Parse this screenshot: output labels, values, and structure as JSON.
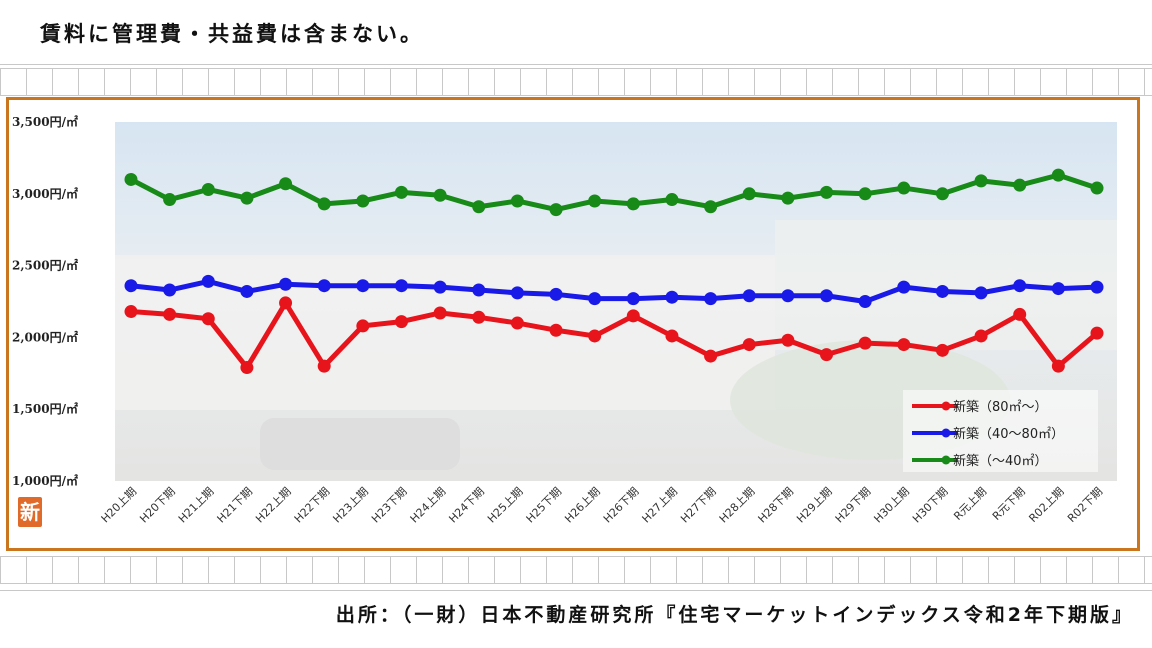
{
  "note": "賃料に管理費・共益費は含まない。",
  "source": "出所：（一財）日本不動産研究所『住宅マーケットインデックス令和2年下期版』",
  "badge": "新",
  "chart_data": {
    "type": "line",
    "title": "",
    "xlabel": "",
    "ylabel": "",
    "ylim": [
      1000,
      3500
    ],
    "yticks": [
      {
        "value": 1000,
        "label": "1,000円/㎡"
      },
      {
        "value": 1500,
        "label": "1,500円/㎡"
      },
      {
        "value": 2000,
        "label": "2,000円/㎡"
      },
      {
        "value": 2500,
        "label": "2,500円/㎡"
      },
      {
        "value": 3000,
        "label": "3,000円/㎡"
      },
      {
        "value": 3500,
        "label": "3,500円/㎡"
      }
    ],
    "categories": [
      "H20上期",
      "H20下期",
      "H21上期",
      "H21下期",
      "H22上期",
      "H22下期",
      "H23上期",
      "H23下期",
      "H24上期",
      "H24下期",
      "H25上期",
      "H25下期",
      "H26上期",
      "H26下期",
      "H27上期",
      "H27下期",
      "H28上期",
      "H28下期",
      "H29上期",
      "H29下期",
      "H30上期",
      "H30下期",
      "R元上期",
      "R元下期",
      "R02上期",
      "R02下期"
    ],
    "legend_position": "bottom-right",
    "series": [
      {
        "name": "新築（80㎡〜）",
        "color": "#e8141c",
        "values": [
          2180,
          2160,
          2130,
          1790,
          2240,
          1800,
          2080,
          2110,
          2170,
          2140,
          2100,
          2050,
          2010,
          2150,
          2010,
          1870,
          1950,
          1980,
          1880,
          1960,
          1950,
          1910,
          2010,
          2160,
          1800,
          2030
        ]
      },
      {
        "name": "新築（40〜80㎡）",
        "color": "#1a1ae8",
        "values": [
          2360,
          2330,
          2390,
          2320,
          2370,
          2360,
          2360,
          2360,
          2350,
          2330,
          2310,
          2300,
          2270,
          2270,
          2280,
          2270,
          2290,
          2290,
          2290,
          2250,
          2350,
          2320,
          2310,
          2360,
          2340,
          2350
        ]
      },
      {
        "name": "新築（〜40㎡）",
        "color": "#178a17",
        "values": [
          3100,
          2960,
          3030,
          2970,
          3070,
          2930,
          2950,
          3010,
          2990,
          2910,
          2950,
          2890,
          2950,
          2930,
          2960,
          2910,
          3000,
          2970,
          3010,
          3000,
          3040,
          3000,
          3090,
          3060,
          3130,
          3040
        ]
      }
    ]
  }
}
